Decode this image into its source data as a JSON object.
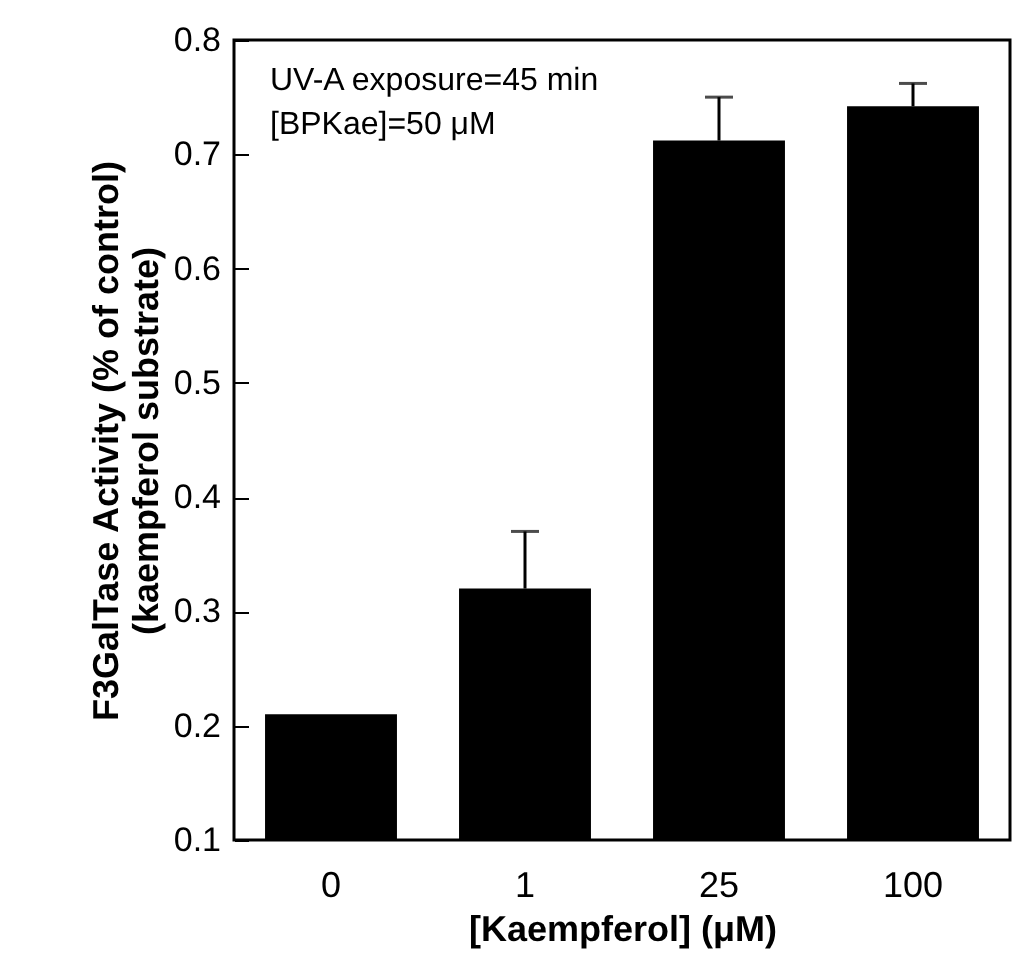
{
  "chart_data": {
    "type": "bar",
    "xlabel": "[Kaempferol] (μM)",
    "ylabel": "F3GalTase Activity (% of control)\n(kaempferol substrate)",
    "annotations": [
      "UV-A exposure=45 min",
      "[BPKae]=50 μM"
    ],
    "categories": [
      "0",
      "1",
      "25",
      "100"
    ],
    "values": [
      0.21,
      0.32,
      0.712,
      0.742
    ],
    "errors": [
      null,
      [
        0.32,
        0.37
      ],
      [
        0.712,
        0.75
      ],
      [
        0.742,
        0.762
      ]
    ],
    "color": "#000000",
    "ylim": [
      0.1,
      0.8
    ],
    "yticks": [
      0.1,
      0.2,
      0.3,
      0.4,
      0.5,
      0.6,
      0.7,
      0.8
    ],
    "grid": false
  }
}
